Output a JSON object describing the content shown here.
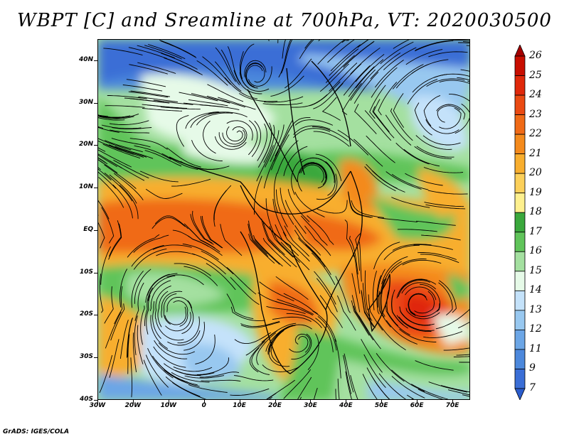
{
  "title": "WBPT [C] and Sreamline at 700hPa, VT: 2020030500",
  "credit": "GrADS: IGES/COLA",
  "map": {
    "lat_labels": [
      "40N",
      "30N",
      "20N",
      "10N",
      "EQ",
      "10S",
      "20S",
      "30S",
      "40S"
    ],
    "lon_labels": [
      "30W",
      "20W",
      "10W",
      "0",
      "10E",
      "20E",
      "30E",
      "40E",
      "50E",
      "60E",
      "70E"
    ],
    "extent": {
      "lon_min": -30,
      "lon_max": 75,
      "lat_min": -40,
      "lat_max": 45
    }
  },
  "colorbar": {
    "labels": [
      "26",
      "25",
      "24",
      "23",
      "22",
      "21",
      "20",
      "19",
      "18",
      "17",
      "16",
      "15",
      "14",
      "13",
      "12",
      "11",
      "9",
      "7"
    ],
    "colors": [
      "#a50000",
      "#c80e00",
      "#e0280a",
      "#ea4a12",
      "#f06a16",
      "#f48a1c",
      "#f8ae2e",
      "#fcd05a",
      "#fef08e",
      "#3aa83c",
      "#60c45a",
      "#a4e0a0",
      "#e6fae8",
      "#c4e2fa",
      "#98c8f0",
      "#6ca6e6",
      "#4c88dc",
      "#3a6ed6",
      "#2a5ccc"
    ]
  }
}
